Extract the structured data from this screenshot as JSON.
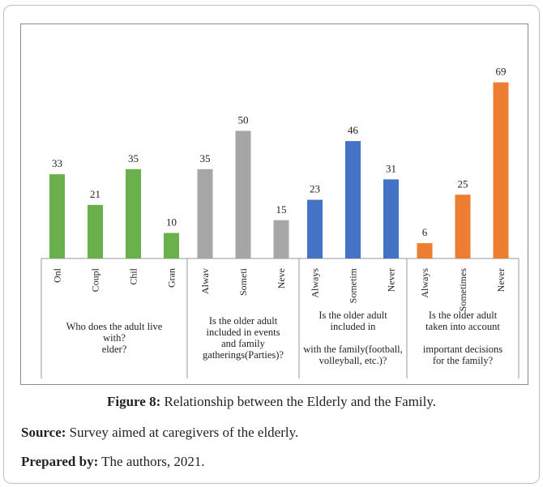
{
  "chart_data": {
    "type": "bar",
    "groups": [
      {
        "label_lines": [
          "Who does the adult live",
          "with?",
          "elder?"
        ],
        "color": "#6ab04c",
        "categories": [
          "Onl",
          "Coupl",
          "Chil",
          "Gran"
        ],
        "values": [
          33,
          21,
          35,
          10
        ]
      },
      {
        "label_lines": [
          "Is the older adult",
          "included in events",
          "and    family",
          "gatherings(Parties)?"
        ],
        "color": "#a6a6a6",
        "categories": [
          "Alwav",
          "Someti",
          "Neve"
        ],
        "values": [
          35,
          50,
          15
        ]
      },
      {
        "label_lines": [
          "Is the older adult",
          "included in",
          "",
          "with the family(football,",
          "volleyball, etc.)?"
        ],
        "color": "#4472c4",
        "categories": [
          "Always",
          "Sometim",
          "Never"
        ],
        "values": [
          23,
          46,
          31
        ]
      },
      {
        "label_lines": [
          "Is the older adult",
          "taken into account",
          "",
          "important decisions",
          "for the  family?"
        ],
        "color": "#ed7d31",
        "categories": [
          "Always",
          "Sometimes",
          "Never"
        ],
        "values": [
          6,
          25,
          69
        ]
      }
    ],
    "ylim": [
      0,
      75
    ],
    "grid": false,
    "legend": "none"
  },
  "caption": {
    "figure_label": "Figure 8:",
    "figure_text": " Relationship between the Elderly and the Family."
  },
  "source": {
    "label": "Source:",
    "text": " Survey aimed at caregivers of the elderly."
  },
  "prepared": {
    "label": "Prepared by:",
    "text": " The authors, 2021."
  }
}
